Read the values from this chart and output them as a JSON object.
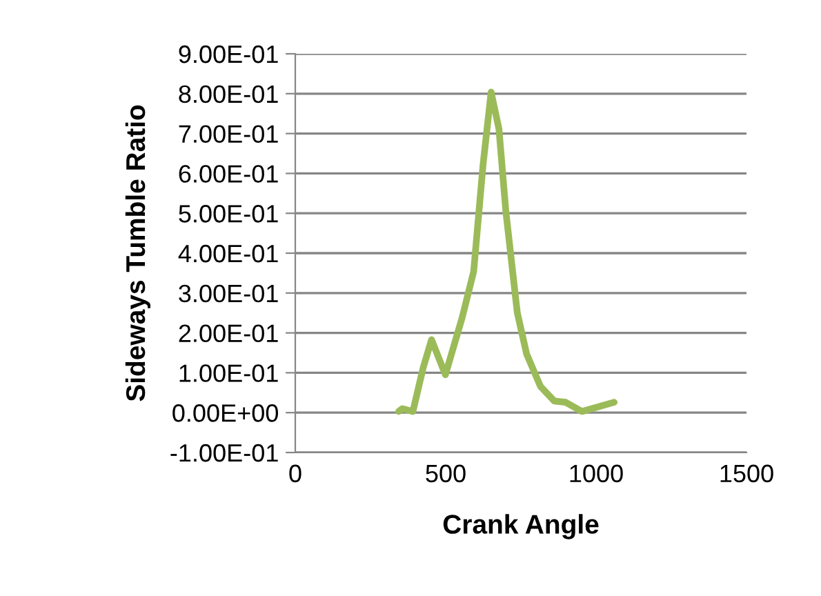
{
  "chart_data": {
    "type": "line",
    "xlabel": "Crank Angle",
    "ylabel": "Sideways Tumble Ratio",
    "series": [
      {
        "color": "#9bbb59",
        "x": [
          344,
          356,
          391,
          425,
          453,
          499,
          555,
          593,
          624,
          651,
          677,
          700,
          738,
          769,
          815,
          861,
          899,
          953,
          1060
        ],
        "values": [
          0.003,
          0.01,
          0.003,
          0.112,
          0.183,
          0.095,
          0.239,
          0.354,
          0.62,
          0.804,
          0.712,
          0.505,
          0.251,
          0.147,
          0.066,
          0.029,
          0.026,
          0.003,
          0.026
        ]
      }
    ],
    "xlim": [
      0,
      1500
    ],
    "xticks": [
      0,
      500,
      1000,
      1500
    ],
    "ylim": [
      -0.1,
      0.9
    ],
    "yticks": [
      {
        "value": -0.1,
        "label": "-1.00E-01"
      },
      {
        "value": 0,
        "label": "0.00E+00"
      },
      {
        "value": 0.1,
        "label": "1.00E-01"
      },
      {
        "value": 0.2,
        "label": "2.00E-01"
      },
      {
        "value": 0.3,
        "label": "3.00E-01"
      },
      {
        "value": 0.4,
        "label": "4.00E-01"
      },
      {
        "value": 0.5,
        "label": "5.00E-01"
      },
      {
        "value": 0.6,
        "label": "6.00E-01"
      },
      {
        "value": 0.7,
        "label": "7.00E-01"
      },
      {
        "value": 0.8,
        "label": "8.00E-01"
      },
      {
        "value": 0.9,
        "label": "9.00E-01"
      }
    ],
    "grid": "y",
    "marker": "none",
    "line_style": "solid"
  }
}
